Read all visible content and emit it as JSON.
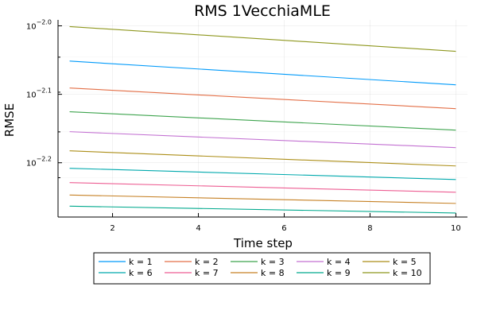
{
  "chart_data": {
    "type": "line",
    "title": "RMS 1VecchiaMLE",
    "xlabel": "Time step",
    "ylabel": "RMSE",
    "x": [
      1,
      10
    ],
    "xlim": [
      0.73,
      10.27
    ],
    "xticks": [
      2,
      4,
      6,
      8,
      10
    ],
    "yscale": "log10",
    "ylim_log10": [
      -2.2793,
      -1.9913
    ],
    "yticks": [
      {
        "base": "10",
        "exponent": "−2.0",
        "log10": -2.0
      },
      {
        "base": "10",
        "exponent": "−2.1",
        "log10": -2.1
      },
      {
        "base": "10",
        "exponent": "−2.2",
        "log10": -2.2
      }
    ],
    "grid": true,
    "legend_position": "bottom-outside",
    "series": [
      {
        "name": "k = 1",
        "color": "#009AFA",
        "log10_values": [
          -2.0515,
          -2.0862
        ]
      },
      {
        "name": "k = 2",
        "color": "#E36F47",
        "log10_values": [
          -2.0908,
          -2.121
        ]
      },
      {
        "name": "k = 3",
        "color": "#3EA44E",
        "log10_values": [
          -2.1255,
          -2.1523
        ]
      },
      {
        "name": "k = 4",
        "color": "#C371D2",
        "log10_values": [
          -2.1546,
          -2.1779
        ]
      },
      {
        "name": "k = 5",
        "color": "#AC8E18",
        "log10_values": [
          -2.1826,
          -2.2047
        ]
      },
      {
        "name": "k = 6",
        "color": "#00A9AD",
        "log10_values": [
          -2.2081,
          -2.2245
        ]
      },
      {
        "name": "k = 7",
        "color": "#ED5E93",
        "log10_values": [
          -2.229,
          -2.2431
        ]
      },
      {
        "name": "k = 8",
        "color": "#C68125",
        "log10_values": [
          -2.2471,
          -2.2594
        ]
      },
      {
        "name": "k = 9",
        "color": "#00A98D",
        "log10_values": [
          -2.2634,
          -2.2734
        ]
      },
      {
        "name": "k = 10",
        "color": "#8E971E",
        "log10_values": [
          -2.0011,
          -2.0372
        ]
      }
    ]
  }
}
